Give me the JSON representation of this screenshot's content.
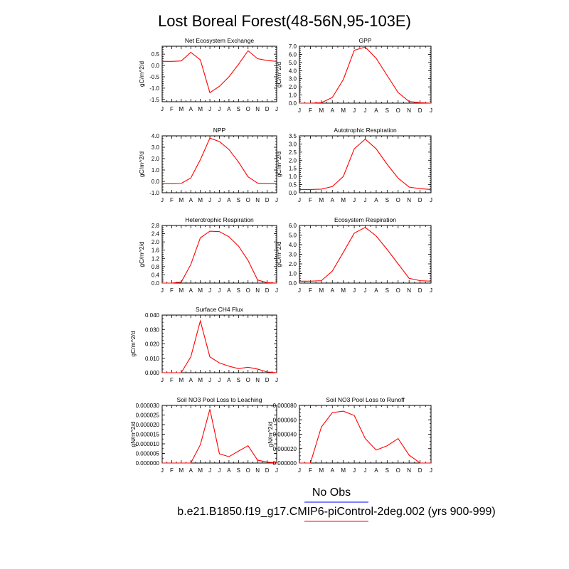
{
  "title": "Lost Boreal Forest(48-56N,95-103E)",
  "colors": {
    "model": "#ff0000",
    "obs": "#0000ff",
    "axis": "#000000"
  },
  "legend": {
    "obs_label": "No Obs",
    "model_label": "b.e21.B1850.f19_g17.CMIP6-piControl-2deg.002 (yrs 900-999)"
  },
  "chart_data": [
    {
      "type": "line",
      "title": "Net Ecosystem Exchange",
      "ylabel": "gC/m^2/d",
      "categories": [
        "J",
        "F",
        "M",
        "A",
        "M",
        "J",
        "J",
        "A",
        "S",
        "O",
        "N",
        "D",
        "J"
      ],
      "ylim": [
        -1.6,
        0.85
      ],
      "yticks": [
        -1.5,
        -1.0,
        -0.5,
        0.0,
        0.5
      ],
      "yminor": 0.1,
      "ytick_labels": [
        "-1.5",
        "-1.0",
        "-0.5",
        "0.0",
        "0.5"
      ],
      "series": [
        {
          "values": [
            0.18,
            0.18,
            0.2,
            0.58,
            0.25,
            -1.2,
            -0.92,
            -0.5,
            0.05,
            0.65,
            0.3,
            0.22,
            0.18
          ]
        }
      ]
    },
    {
      "type": "line",
      "title": "GPP",
      "ylabel": "gC/m^2/d",
      "categories": [
        "J",
        "F",
        "M",
        "A",
        "M",
        "J",
        "J",
        "A",
        "S",
        "O",
        "N",
        "D",
        "J"
      ],
      "ylim": [
        0,
        7.0
      ],
      "yticks": [
        0,
        1,
        2,
        3,
        4,
        5,
        6,
        7
      ],
      "yminor": 0.25,
      "ytick_labels": [
        "0.0",
        "1.0",
        "2.0",
        "3.0",
        "4.0",
        "5.0",
        "6.0",
        "7.0"
      ],
      "series": [
        {
          "values": [
            0.0,
            0.0,
            0.05,
            0.7,
            2.9,
            6.5,
            6.9,
            5.5,
            3.4,
            1.3,
            0.2,
            0.05,
            0.0
          ]
        }
      ]
    },
    {
      "type": "line",
      "title": "NPP",
      "ylabel": "gC/m^2/d",
      "categories": [
        "J",
        "F",
        "M",
        "A",
        "M",
        "J",
        "J",
        "A",
        "S",
        "O",
        "N",
        "D",
        "J"
      ],
      "ylim": [
        -1.0,
        4.0
      ],
      "yticks": [
        -1,
        0,
        1,
        2,
        3,
        4
      ],
      "yminor": 0.25,
      "ytick_labels": [
        "-1.0",
        "0.0",
        "1.0",
        "2.0",
        "3.0",
        "4.0"
      ],
      "series": [
        {
          "values": [
            -0.2,
            -0.2,
            -0.18,
            0.3,
            1.9,
            3.8,
            3.5,
            2.8,
            1.7,
            0.4,
            -0.15,
            -0.2,
            -0.2
          ]
        }
      ]
    },
    {
      "type": "line",
      "title": "Autotrophic Respiration",
      "ylabel": "gC/m^2/d",
      "categories": [
        "J",
        "F",
        "M",
        "A",
        "M",
        "J",
        "J",
        "A",
        "S",
        "O",
        "N",
        "D",
        "J"
      ],
      "ylim": [
        0,
        3.5
      ],
      "yticks": [
        0,
        0.5,
        1.0,
        1.5,
        2.0,
        2.5,
        3.0,
        3.5
      ],
      "yminor": 0.125,
      "ytick_labels": [
        "0.0",
        "0.5",
        "1.0",
        "1.5",
        "2.0",
        "2.5",
        "3.0",
        "3.5"
      ],
      "series": [
        {
          "values": [
            0.2,
            0.2,
            0.22,
            0.38,
            1.0,
            2.7,
            3.3,
            2.7,
            1.75,
            0.9,
            0.35,
            0.25,
            0.2
          ]
        }
      ]
    },
    {
      "type": "line",
      "title": "Heterotrophic Respiration",
      "ylabel": "gC/m^2/d",
      "categories": [
        "J",
        "F",
        "M",
        "A",
        "M",
        "J",
        "J",
        "A",
        "S",
        "O",
        "N",
        "D",
        "J"
      ],
      "ylim": [
        0,
        2.8
      ],
      "yticks": [
        0,
        0.4,
        0.8,
        1.2,
        1.6,
        2.0,
        2.4,
        2.8
      ],
      "yminor": 0.1,
      "ytick_labels": [
        "0.0",
        "0.4",
        "0.8",
        "1.2",
        "1.6",
        "2.0",
        "2.4",
        "2.8"
      ],
      "series": [
        {
          "values": [
            0.0,
            0.0,
            0.05,
            0.9,
            2.2,
            2.52,
            2.5,
            2.25,
            1.8,
            1.1,
            0.15,
            0.02,
            0.0
          ]
        }
      ]
    },
    {
      "type": "line",
      "title": "Ecosystem Respiration",
      "ylabel": "gC/m^2/d",
      "categories": [
        "J",
        "F",
        "M",
        "A",
        "M",
        "J",
        "J",
        "A",
        "S",
        "O",
        "N",
        "D",
        "J"
      ],
      "ylim": [
        0,
        6.0
      ],
      "yticks": [
        0,
        1,
        2,
        3,
        4,
        5,
        6
      ],
      "yminor": 0.25,
      "ytick_labels": [
        "0.0",
        "1.0",
        "2.0",
        "3.0",
        "4.0",
        "5.0",
        "6.0"
      ],
      "series": [
        {
          "values": [
            0.2,
            0.2,
            0.25,
            1.25,
            3.2,
            5.2,
            5.8,
            4.9,
            3.5,
            2.0,
            0.5,
            0.25,
            0.2
          ]
        }
      ]
    },
    {
      "type": "line",
      "title": "Surface CH4 Flux",
      "ylabel": "gC/m^2/d",
      "categories": [
        "J",
        "F",
        "M",
        "A",
        "M",
        "J",
        "J",
        "A",
        "S",
        "O",
        "N",
        "D",
        "J"
      ],
      "ylim": [
        0,
        0.04
      ],
      "yticks": [
        0,
        0.01,
        0.02,
        0.03,
        0.04
      ],
      "yminor": 0.0025,
      "ytick_labels": [
        "0.000",
        "0.010",
        "0.020",
        "0.030",
        "0.040"
      ],
      "series": [
        {
          "values": [
            0.0,
            0.0,
            0.0,
            0.011,
            0.036,
            0.011,
            0.0068,
            0.0045,
            0.0028,
            0.0038,
            0.0025,
            0.0005,
            0.0
          ]
        }
      ]
    },
    null,
    {
      "type": "line",
      "title": "Soil NO3 Pool Loss to Leaching",
      "ylabel": "gN/m^2/d",
      "categories": [
        "J",
        "F",
        "M",
        "A",
        "M",
        "J",
        "J",
        "A",
        "S",
        "O",
        "N",
        "D",
        "J"
      ],
      "ylim": [
        0,
        3e-05
      ],
      "yticks": [
        0,
        5e-06,
        1e-05,
        1.5e-05,
        2e-05,
        2.5e-05,
        3e-05
      ],
      "yminor": 2.5e-06,
      "ytick_labels": [
        "0.000000",
        "0.000005",
        "0.000010",
        "0.000015",
        "0.000020",
        "0.000025",
        "0.000030"
      ],
      "series": [
        {
          "values": [
            0.0,
            0.0,
            0.0,
            0.0,
            9.5e-06,
            2.8e-05,
            4.8e-06,
            3.3e-06,
            6.2e-06,
            9e-06,
            1.5e-06,
            5e-07,
            0.0
          ]
        }
      ]
    },
    {
      "type": "line",
      "title": "Soil NO3 Pool Loss to Runoff",
      "ylabel": "gN/m^2/d",
      "categories": [
        "J",
        "F",
        "M",
        "A",
        "M",
        "J",
        "J",
        "A",
        "S",
        "O",
        "N",
        "D",
        "J"
      ],
      "ylim": [
        0,
        8e-05
      ],
      "yticks": [
        0,
        2e-05,
        4e-05,
        6e-05,
        8e-05
      ],
      "yminor": 5e-06,
      "ytick_labels": [
        "0.000000",
        "0.000020",
        "0.000040",
        "0.000060",
        "0.000080"
      ],
      "series": [
        {
          "values": [
            0.0,
            0.0,
            5e-05,
            7e-05,
            7.2e-05,
            6.6e-05,
            3.4e-05,
            1.8e-05,
            2.4e-05,
            3.4e-05,
            1.1e-05,
            0.0,
            0.0
          ]
        }
      ]
    }
  ]
}
